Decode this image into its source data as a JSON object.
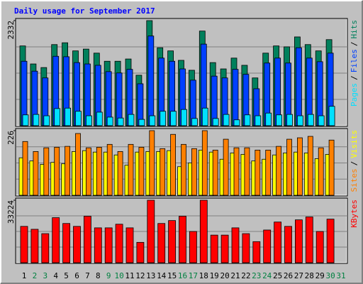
{
  "chart_data": {
    "type": "bar",
    "title": "Daily usage for September 2017",
    "legend_separator": "/",
    "categories": [
      "1",
      "2",
      "3",
      "4",
      "5",
      "6",
      "7",
      "8",
      "9",
      "10",
      "11",
      "12",
      "13",
      "14",
      "15",
      "16",
      "17",
      "18",
      "19",
      "20",
      "21",
      "22",
      "23",
      "24",
      "25",
      "26",
      "27",
      "28",
      "29",
      "30",
      "31"
    ],
    "category_colors": [
      "#000000",
      "#008040",
      "#008040",
      "#000000",
      "#000000",
      "#000000",
      "#000000",
      "#000000",
      "#008040",
      "#008040",
      "#000000",
      "#000000",
      "#000000",
      "#000000",
      "#000000",
      "#008040",
      "#008040",
      "#000000",
      "#000000",
      "#000000",
      "#000000",
      "#000000",
      "#008040",
      "#008040",
      "#000000",
      "#000000",
      "#000000",
      "#000000",
      "#000000",
      "#008040",
      "#008040"
    ],
    "panels": [
      {
        "ylim": [
          0,
          2332
        ],
        "yticks": [
          2332
        ],
        "series": [
          {
            "name": "Hits",
            "color": "#00805c",
            "values": [
              1770,
              1370,
              1290,
              1800,
              1840,
              1660,
              1700,
              1610,
              1430,
              1430,
              1480,
              1120,
              2332,
              1730,
              1660,
              1450,
              1230,
              2100,
              1400,
              1260,
              1500,
              1340,
              1060,
              1610,
              1770,
              1750,
              1970,
              1800,
              1660,
              1910,
              null
            ]
          },
          {
            "name": "Files",
            "color": "#0040ff",
            "values": [
              1430,
              1210,
              1060,
              1540,
              1530,
              1400,
              1370,
              1340,
              1200,
              1170,
              1250,
              930,
              1990,
              1500,
              1430,
              1260,
              1010,
              1810,
              1100,
              1060,
              1250,
              1140,
              820,
              1390,
              1500,
              1390,
              1730,
              1500,
              1420,
              1610,
              null
            ]
          },
          {
            "name": "Pages",
            "color": "#00e0ff",
            "values": [
              240,
              250,
              220,
              380,
              390,
              320,
              220,
              300,
              190,
              170,
              250,
              140,
              220,
              320,
              320,
              360,
              160,
              390,
              160,
              250,
              130,
              240,
              220,
              280,
              240,
              250,
              220,
              250,
              220,
              430,
              null
            ]
          }
        ]
      },
      {
        "ylim": [
          0,
          226
        ],
        "yticks": [
          226
        ],
        "series": [
          {
            "name": "Visits",
            "color": "#ffff00",
            "values": [
              131,
              120,
              108,
              115,
              110,
              153,
              156,
              151,
              151,
              141,
              105,
              151,
              153,
              153,
              156,
              100,
              113,
              158,
              151,
              126,
              148,
              143,
              120,
              126,
              141,
              148,
              151,
              148,
              128,
              143,
              null
            ]
          },
          {
            "name": "Sites",
            "color": "#ff8000",
            "values": [
              188,
              153,
              166,
              168,
              171,
              216,
              166,
              168,
              178,
              153,
              178,
              168,
              226,
              163,
              213,
              178,
              163,
              226,
              158,
              196,
              166,
              166,
              158,
              158,
              171,
              196,
              201,
              206,
              166,
              193,
              null
            ]
          }
        ]
      },
      {
        "ylim": [
          0,
          33224
        ],
        "yticks": [
          33224
        ],
        "series": [
          {
            "name": "KBytes",
            "color": "#ff0000",
            "values": [
              19320,
              17770,
              15450,
              23950,
              20860,
              19320,
              24720,
              18540,
              18540,
              20470,
              18540,
              10820,
              33224,
              20860,
              22410,
              24720,
              16610,
              33224,
              14680,
              14680,
              18540,
              15450,
              11200,
              17380,
              21630,
              19320,
              22790,
              24340,
              16610,
              23180,
              null
            ]
          }
        ]
      }
    ]
  }
}
